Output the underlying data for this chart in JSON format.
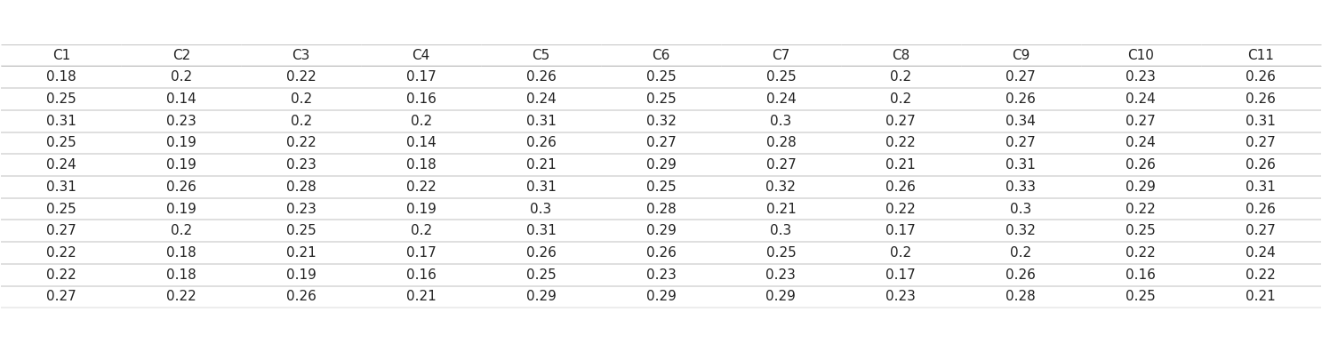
{
  "columns": [
    "C1",
    "C2",
    "C3",
    "C4",
    "C5",
    "C6",
    "C7",
    "C8",
    "C9",
    "C10",
    "C11"
  ],
  "rows": [
    [
      0.18,
      0.2,
      0.22,
      0.17,
      0.26,
      0.25,
      0.25,
      0.2,
      0.27,
      0.23,
      0.26
    ],
    [
      0.25,
      0.14,
      0.2,
      0.16,
      0.24,
      0.25,
      0.24,
      0.2,
      0.26,
      0.24,
      0.26
    ],
    [
      0.31,
      0.23,
      0.2,
      0.2,
      0.31,
      0.32,
      0.3,
      0.27,
      0.34,
      0.27,
      0.31
    ],
    [
      0.25,
      0.19,
      0.22,
      0.14,
      0.26,
      0.27,
      0.28,
      0.22,
      0.27,
      0.24,
      0.27
    ],
    [
      0.24,
      0.19,
      0.23,
      0.18,
      0.21,
      0.29,
      0.27,
      0.21,
      0.31,
      0.26,
      0.26
    ],
    [
      0.31,
      0.26,
      0.28,
      0.22,
      0.31,
      0.25,
      0.32,
      0.26,
      0.33,
      0.29,
      0.31
    ],
    [
      0.25,
      0.19,
      0.23,
      0.19,
      0.3,
      0.28,
      0.21,
      0.22,
      0.3,
      0.22,
      0.26
    ],
    [
      0.27,
      0.2,
      0.25,
      0.2,
      0.31,
      0.29,
      0.3,
      0.17,
      0.32,
      0.25,
      0.27
    ],
    [
      0.22,
      0.18,
      0.21,
      0.17,
      0.26,
      0.26,
      0.25,
      0.2,
      0.2,
      0.22,
      0.24
    ],
    [
      0.22,
      0.18,
      0.19,
      0.16,
      0.25,
      0.23,
      0.23,
      0.17,
      0.26,
      0.16,
      0.22
    ],
    [
      0.27,
      0.22,
      0.26,
      0.21,
      0.29,
      0.29,
      0.29,
      0.23,
      0.28,
      0.25,
      0.21
    ]
  ],
  "cell_align": "center",
  "header_fontsize": 11,
  "cell_fontsize": 11,
  "background_color": "#ffffff",
  "header_bg": "#ffffff",
  "row_bg_even": "#ffffff",
  "row_bg_odd": "#f5f5f5",
  "line_color": "#aaaaaa",
  "text_color": "#222222"
}
